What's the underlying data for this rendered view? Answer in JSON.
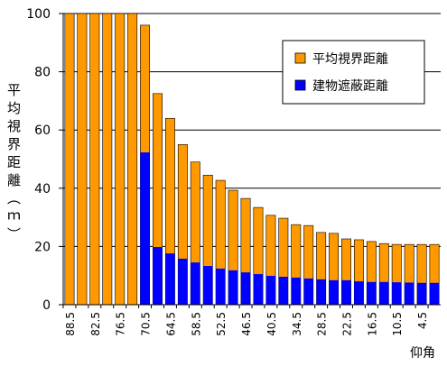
{
  "chart_data": {
    "type": "bar",
    "x_label": "仰角",
    "y_label": "平均視界距離（ｍ）",
    "categories": [
      "88.5",
      null,
      "82.5",
      null,
      "76.5",
      null,
      "70.5",
      null,
      "64.5",
      null,
      "58.5",
      null,
      "52.5",
      null,
      "46.5",
      null,
      "40.5",
      null,
      "34.5",
      null,
      "28.5",
      null,
      "22.5",
      null,
      "16.5",
      null,
      "10.5",
      null,
      "4.5",
      null
    ],
    "series": [
      {
        "name": "平均視界距離",
        "color": "#ff9900",
        "values": [
          100,
          100,
          100,
          100,
          100,
          100,
          96,
          72.5,
          64,
          55,
          49,
          44.5,
          42.7,
          39.3,
          36.5,
          33.4,
          30.7,
          29.7,
          27.5,
          27.2,
          24.8,
          24.5,
          22.6,
          22.3,
          21.7,
          21,
          20.7,
          20.7,
          20.7,
          20.7
        ]
      },
      {
        "name": "建物遮蔽距離",
        "color": "#0000ff",
        "values": [
          0,
          0,
          0,
          0,
          0,
          0,
          52.3,
          19.8,
          17.6,
          15.8,
          14.5,
          13.3,
          12.4,
          11.8,
          11.1,
          10.5,
          9.9,
          9.6,
          9.3,
          9,
          8.7,
          8.4,
          8.4,
          8,
          7.8,
          7.8,
          7.7,
          7.6,
          7.5,
          7.5
        ]
      }
    ],
    "ylim": [
      0,
      100
    ],
    "yticks": [
      0,
      20,
      40,
      60,
      80,
      100
    ],
    "grid": true
  }
}
